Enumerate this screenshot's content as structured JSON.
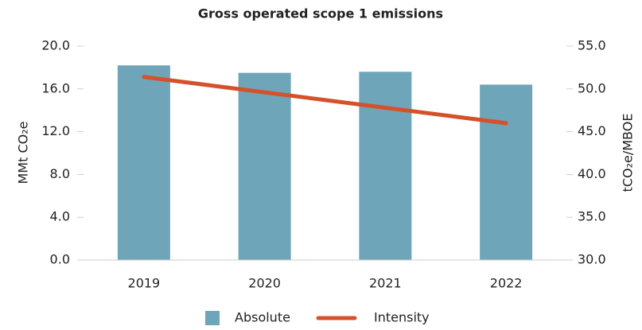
{
  "chart_data": {
    "type": "bar-line",
    "title": "Gross operated scope 1 emissions",
    "categories": [
      "2019",
      "2020",
      "2021",
      "2022"
    ],
    "series": [
      {
        "name": "Absolute",
        "type": "bar",
        "color": "#6ea5b9",
        "values": [
          18.2,
          17.5,
          17.6,
          16.4
        ]
      },
      {
        "name": "Intensity",
        "type": "line",
        "axis": "y2",
        "color": "#d4512b",
        "values": [
          51.4,
          49.6,
          47.8,
          46.0
        ]
      }
    ],
    "ylabel": "MMt CO₂e",
    "y2label": "tCO₂e/MBOE",
    "ylim": [
      0,
      20
    ],
    "yticks": [
      {
        "value": 0,
        "label": "0.0"
      },
      {
        "value": 4,
        "label": "4.0"
      },
      {
        "value": 8,
        "label": "8.0"
      },
      {
        "value": 12,
        "label": "12.0"
      },
      {
        "value": 16,
        "label": "16.0"
      },
      {
        "value": 20,
        "label": "20.0"
      }
    ],
    "y2lim": [
      30,
      55
    ],
    "y2ticks": [
      {
        "value": 30,
        "label": "30.0"
      },
      {
        "value": 35,
        "label": "35.0"
      },
      {
        "value": 40,
        "label": "40.0"
      },
      {
        "value": 45,
        "label": "45.0"
      },
      {
        "value": 50,
        "label": "50.0"
      },
      {
        "value": 55,
        "label": "55.0"
      }
    ],
    "legend": "bottom"
  }
}
